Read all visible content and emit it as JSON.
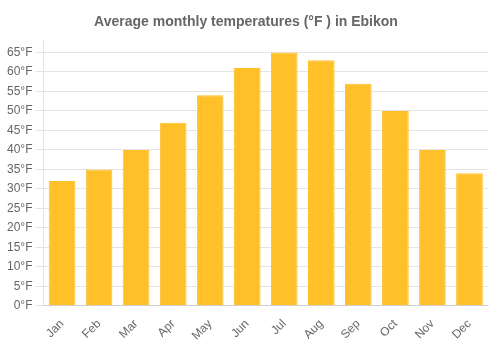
{
  "chart_data": {
    "type": "bar",
    "title": "Average monthly temperatures (°F ) in Ebikon",
    "categories": [
      "Jan",
      "Feb",
      "Mar",
      "Apr",
      "May",
      "Jun",
      "Jul",
      "Aug",
      "Sep",
      "Oct",
      "Nov",
      "Dec"
    ],
    "values": [
      32,
      35,
      40,
      47,
      54,
      61,
      65,
      63,
      57,
      50,
      40,
      34
    ],
    "color": "#FFC02A",
    "ylim": [
      0,
      68
    ],
    "yticks": [
      {
        "value": 0,
        "label": "0°F"
      },
      {
        "value": 5,
        "label": "5°F"
      },
      {
        "value": 10,
        "label": "10°F"
      },
      {
        "value": 15,
        "label": "15°F"
      },
      {
        "value": 20,
        "label": "20°F"
      },
      {
        "value": 25,
        "label": "25°F"
      },
      {
        "value": 30,
        "label": "30°F"
      },
      {
        "value": 35,
        "label": "35°F"
      },
      {
        "value": 40,
        "label": "40°F"
      },
      {
        "value": 45,
        "label": "45°F"
      },
      {
        "value": 50,
        "label": "50°F"
      },
      {
        "value": 55,
        "label": "55°F"
      },
      {
        "value": 60,
        "label": "60°F"
      },
      {
        "value": 65,
        "label": "65°F"
      }
    ],
    "grid": true
  }
}
